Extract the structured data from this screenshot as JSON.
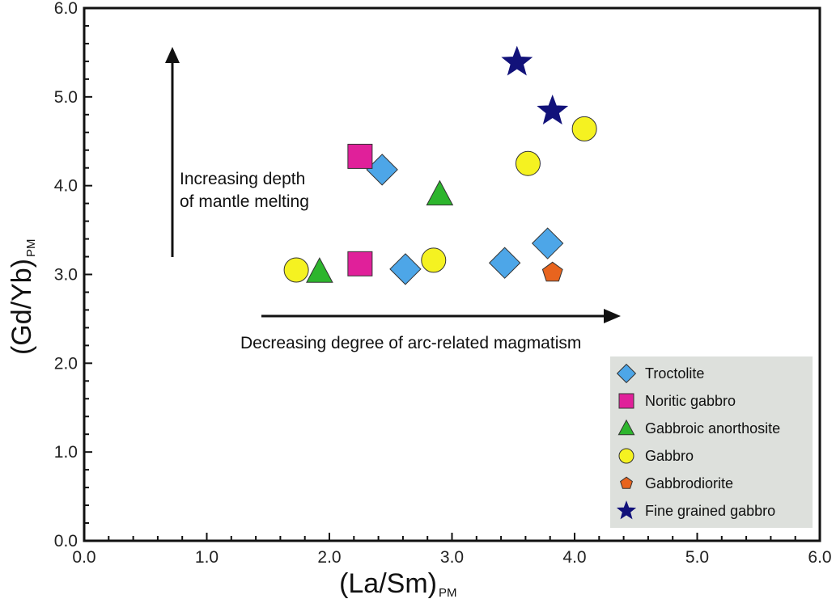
{
  "chart_data": {
    "type": "scatter",
    "xlabel": "(La/Sm)",
    "xlabel_sub": "PM",
    "ylabel": "(Gd/Yb)",
    "ylabel_sub": "PM",
    "xlim": [
      0,
      6
    ],
    "ylim": [
      0,
      6
    ],
    "x_ticks": [
      "0.0",
      "1.0",
      "2.0",
      "3.0",
      "4.0",
      "5.0",
      "6.0"
    ],
    "y_ticks": [
      "0.0",
      "1.0",
      "2.0",
      "3.0",
      "4.0",
      "5.0",
      "6.0"
    ],
    "grid": false,
    "legend_position": "bottom-right",
    "annotations": {
      "vertical_arrow": [
        "Increasing depth",
        "of mantle melting"
      ],
      "horizontal_arrow": "Decreasing degree of arc-related magmatism"
    },
    "series": [
      {
        "name": "Troctolite",
        "marker": "diamond",
        "color": "#4da6e8",
        "points": [
          [
            2.43,
            4.18
          ],
          [
            2.62,
            3.06
          ],
          [
            3.43,
            3.13
          ],
          [
            3.78,
            3.35
          ]
        ]
      },
      {
        "name": "Noritic gabbro",
        "marker": "square",
        "color": "#e0209a",
        "points": [
          [
            2.25,
            4.33
          ],
          [
            2.25,
            3.12
          ]
        ]
      },
      {
        "name": "Gabbroic anorthosite",
        "marker": "triangle",
        "color": "#2db52d",
        "points": [
          [
            1.92,
            3.03
          ],
          [
            2.9,
            3.9
          ]
        ]
      },
      {
        "name": "Gabbro",
        "marker": "circle",
        "color": "#f5f221",
        "points": [
          [
            1.73,
            3.05
          ],
          [
            2.85,
            3.16
          ],
          [
            3.62,
            4.25
          ],
          [
            4.08,
            4.64
          ]
        ]
      },
      {
        "name": "Gabbrodiorite",
        "marker": "pentagon",
        "color": "#e8641e",
        "points": [
          [
            3.82,
            3.02
          ]
        ]
      },
      {
        "name": "Fine grained gabbro",
        "marker": "star",
        "color": "#12127a",
        "points": [
          [
            3.53,
            5.39
          ],
          [
            3.82,
            4.84
          ]
        ]
      }
    ]
  }
}
